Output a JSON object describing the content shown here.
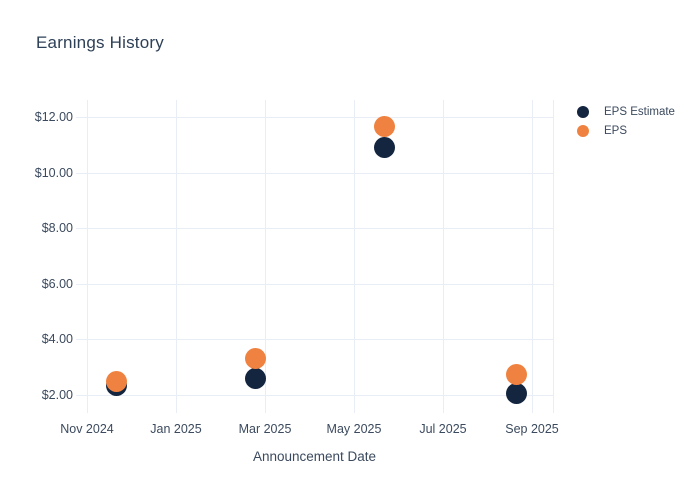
{
  "title": "Earnings History",
  "colors": {
    "eps_estimate": "#13253f",
    "eps": "#ef8240",
    "gridline": "#e9eef6",
    "title_text": "#2e4057",
    "label_text": "#3b4a5e",
    "background": "#ffffff"
  },
  "legend": {
    "items": [
      {
        "label": "EPS Estimate",
        "series": "eps_estimate"
      },
      {
        "label": "EPS",
        "series": "eps"
      }
    ]
  },
  "x_axis": {
    "title": "Announcement Date",
    "tick_labels": [
      "Nov 2024",
      "Jan 2025",
      "Mar 2025",
      "May 2025",
      "Jul 2025",
      "Sep 2025"
    ]
  },
  "y_axis": {
    "tick_labels": [
      "$2.00",
      "$4.00",
      "$6.00",
      "$8.00",
      "$10.00",
      "$12.00"
    ],
    "tick_values": [
      2,
      4,
      6,
      8,
      10,
      12
    ]
  },
  "chart_data": {
    "type": "scatter",
    "title": "Earnings History",
    "xlabel": "Announcement Date",
    "ylabel": "",
    "x_tick_labels": [
      "Nov 2024",
      "Jan 2025",
      "Mar 2025",
      "May 2025",
      "Jul 2025",
      "Sep 2025"
    ],
    "y_tick_labels": [
      "$2.00",
      "$4.00",
      "$6.00",
      "$8.00",
      "$10.00",
      "$12.00"
    ],
    "ylim": [
      1.4,
      12.6
    ],
    "grid": true,
    "legend_position": "right-top",
    "points": [
      {
        "approx_date": "2024-11-21",
        "eps_estimate": 2.35,
        "eps": 2.5
      },
      {
        "approx_date": "2025-02-25",
        "eps_estimate": 2.58,
        "eps": 3.32
      },
      {
        "approx_date": "2025-05-22",
        "eps_estimate": 10.91,
        "eps": 11.65
      },
      {
        "approx_date": "2025-08-21",
        "eps_estimate": 2.05,
        "eps": 2.75
      }
    ],
    "series": [
      {
        "name": "EPS Estimate",
        "color": "#13253f",
        "values": [
          2.35,
          2.58,
          10.91,
          2.05
        ]
      },
      {
        "name": "EPS",
        "color": "#ef8240",
        "values": [
          2.5,
          3.32,
          11.65,
          2.75
        ]
      }
    ]
  }
}
